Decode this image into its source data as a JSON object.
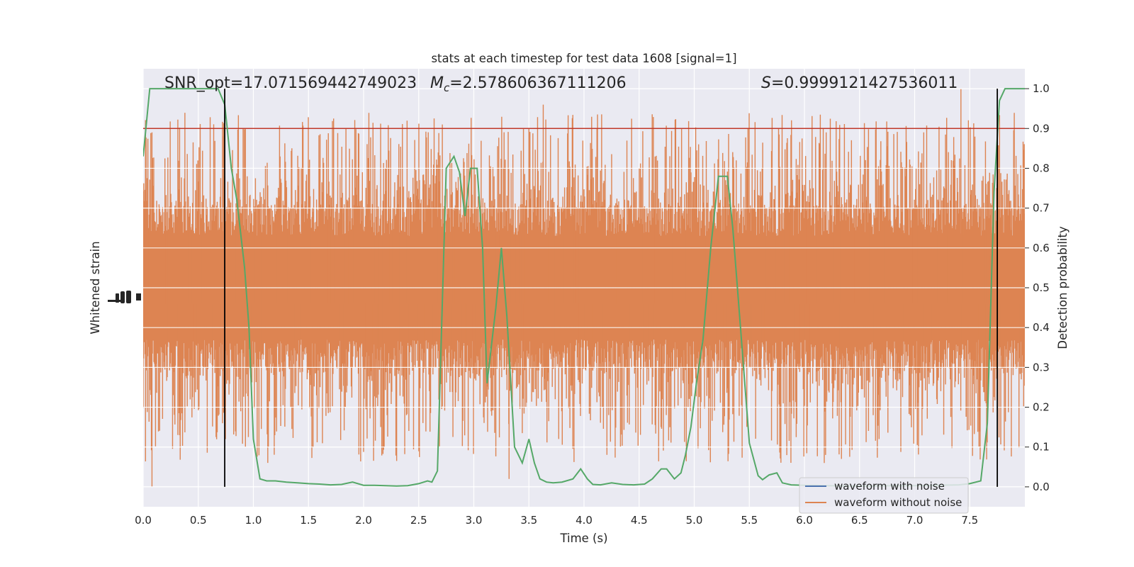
{
  "chart_data": {
    "type": "line",
    "title": "stats at each timestep for test data 1608 [signal=1]",
    "xlabel": "Time (s)",
    "ylabel_left": "Whitened strain",
    "ylabel_right": "Detection probability",
    "xlim": [
      0,
      8.0
    ],
    "ylim_right": [
      -0.05,
      1.05
    ],
    "x_ticks": [
      "0.0",
      "0.5",
      "1.0",
      "1.5",
      "2.0",
      "2.5",
      "3.0",
      "3.5",
      "4.0",
      "4.5",
      "5.0",
      "5.5",
      "6.0",
      "6.5",
      "7.0",
      "7.5"
    ],
    "x_tick_values": [
      0.0,
      0.5,
      1.0,
      1.5,
      2.0,
      2.5,
      3.0,
      3.5,
      4.0,
      4.5,
      5.0,
      5.5,
      6.0,
      6.5,
      7.0,
      7.5
    ],
    "y_ticks_right": [
      "0.0",
      "0.1",
      "0.2",
      "0.3",
      "0.4",
      "0.5",
      "0.6",
      "0.7",
      "0.8",
      "0.9",
      "1.0"
    ],
    "y_tick_values_right": [
      0.0,
      0.1,
      0.2,
      0.3,
      0.4,
      0.5,
      0.6,
      0.7,
      0.8,
      0.9,
      1.0
    ],
    "grid": true,
    "annotations": {
      "snr": "SNR_opt=17.071569442749023",
      "mc_symbol": "M",
      "mc_sub": "c",
      "mc_value": "=2.578606367111206",
      "s_symbol": "S",
      "s_value": "=0.9999121427536011"
    },
    "threshold": {
      "y": 0.9,
      "color": "#c0392b"
    },
    "vertical_lines": [
      0.74,
      7.75
    ],
    "series": [
      {
        "name": "waveform with noise",
        "color": "#4c72b0",
        "kind": "strain"
      },
      {
        "name": "waveform without noise",
        "color": "#dd8452",
        "kind": "strain",
        "envelope": {
          "center": 0.46,
          "dense_low": 0.3,
          "dense_high": 0.7,
          "spike_low": 0.0,
          "spike_high": 1.0
        }
      },
      {
        "name": "",
        "color": "#55a868",
        "kind": "detection_probability",
        "x": [
          0.0,
          0.06,
          0.12,
          0.2,
          0.3,
          0.4,
          0.5,
          0.55,
          0.62,
          0.68,
          0.74,
          0.8,
          0.85,
          0.92,
          0.96,
          1.0,
          1.06,
          1.12,
          1.2,
          1.3,
          1.4,
          1.5,
          1.6,
          1.7,
          1.8,
          1.9,
          2.0,
          2.1,
          2.2,
          2.3,
          2.4,
          2.5,
          2.58,
          2.62,
          2.67,
          2.75,
          2.82,
          2.87,
          2.92,
          2.97,
          3.03,
          3.08,
          3.12,
          3.2,
          3.25,
          3.3,
          3.37,
          3.44,
          3.5,
          3.55,
          3.6,
          3.66,
          3.72,
          3.8,
          3.9,
          3.97,
          4.03,
          4.08,
          4.15,
          4.25,
          4.35,
          4.45,
          4.55,
          4.62,
          4.7,
          4.75,
          4.82,
          4.88,
          4.92,
          4.97,
          5.02,
          5.08,
          5.15,
          5.22,
          5.3,
          5.35,
          5.42,
          5.5,
          5.58,
          5.62,
          5.68,
          5.75,
          5.8,
          5.88,
          6.0,
          6.1,
          6.2,
          6.4,
          6.6,
          6.8,
          7.0,
          7.2,
          7.4,
          7.5,
          7.6,
          7.66,
          7.72,
          7.77,
          7.82,
          7.88,
          7.93,
          8.0
        ],
        "y": [
          0.83,
          1.0,
          1.0,
          1.0,
          1.0,
          1.0,
          1.0,
          1.0,
          1.0,
          1.0,
          0.96,
          0.8,
          0.72,
          0.55,
          0.4,
          0.12,
          0.02,
          0.015,
          0.015,
          0.012,
          0.01,
          0.008,
          0.007,
          0.005,
          0.006,
          0.012,
          0.004,
          0.004,
          0.003,
          0.002,
          0.003,
          0.008,
          0.015,
          0.012,
          0.04,
          0.8,
          0.83,
          0.79,
          0.68,
          0.8,
          0.8,
          0.6,
          0.26,
          0.45,
          0.6,
          0.43,
          0.1,
          0.06,
          0.12,
          0.06,
          0.02,
          0.012,
          0.01,
          0.012,
          0.02,
          0.045,
          0.02,
          0.006,
          0.005,
          0.01,
          0.006,
          0.005,
          0.007,
          0.02,
          0.045,
          0.045,
          0.02,
          0.035,
          0.08,
          0.15,
          0.26,
          0.37,
          0.6,
          0.78,
          0.78,
          0.65,
          0.4,
          0.11,
          0.028,
          0.018,
          0.03,
          0.035,
          0.01,
          0.005,
          0.004,
          0.004,
          0.003,
          0.002,
          0.002,
          0.003,
          0.003,
          0.004,
          0.005,
          0.008,
          0.015,
          0.16,
          0.74,
          0.97,
          1.0,
          1.0,
          1.0,
          1.0
        ]
      }
    ]
  }
}
